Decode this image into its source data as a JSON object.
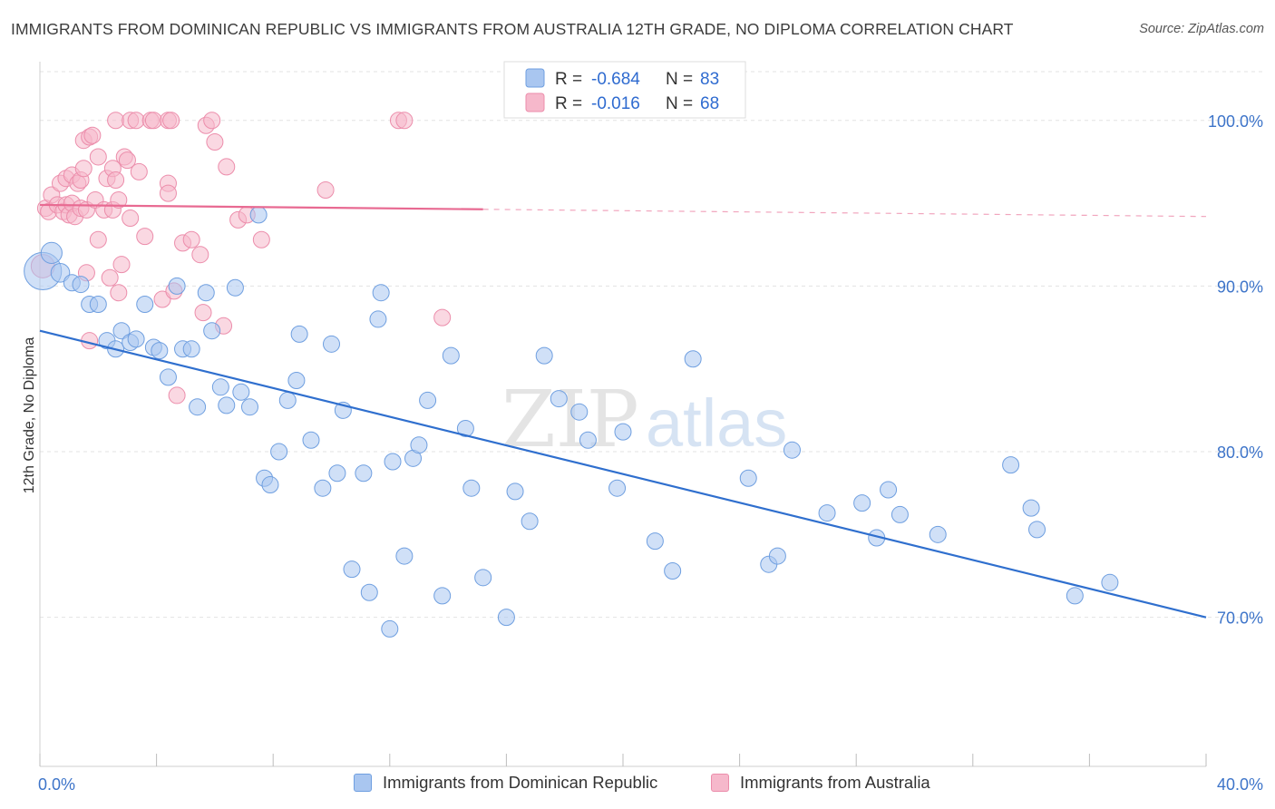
{
  "title": "IMMIGRANTS FROM DOMINICAN REPUBLIC VS IMMIGRANTS FROM AUSTRALIA 12TH GRADE, NO DIPLOMA CORRELATION CHART",
  "source": "Source: ZipAtlas.com",
  "watermark": {
    "zip": "ZIP",
    "atlas": "atlas"
  },
  "colors": {
    "blue_fill": "#a9c6f0",
    "blue_stroke": "#6f9fe0",
    "blue_line": "#2f6fce",
    "pink_fill": "#f6b8cb",
    "pink_stroke": "#ec8dab",
    "pink_line": "#e86a92",
    "grid": "#e3e3e3",
    "tick_text": "#3d74c9"
  },
  "legend": {
    "rows": [
      {
        "r_label": "R = ",
        "r_value": "-0.684",
        "n_label": "N = ",
        "n_value": "83"
      },
      {
        "r_label": "R = ",
        "r_value": "-0.016",
        "n_label": "N = ",
        "n_value": "68"
      }
    ]
  },
  "bottom_legend": [
    "Immigrants from Dominican Republic",
    "Immigrants from Australia"
  ],
  "chart_data": {
    "type": "scatter",
    "title": "IMMIGRANTS FROM DOMINICAN REPUBLIC VS IMMIGRANTS FROM AUSTRALIA 12TH GRADE, NO DIPLOMA CORRELATION CHART",
    "xlabel": "",
    "ylabel": "12th Grade, No Diploma",
    "xlim": [
      0,
      40
    ],
    "ylim": [
      61,
      103
    ],
    "x_tick_labels": [
      {
        "value": 0,
        "label": "0.0%"
      },
      {
        "value": 40,
        "label": "40.0%"
      }
    ],
    "y_tick_labels": [
      {
        "value": 100,
        "label": "100.0%"
      },
      {
        "value": 90,
        "label": "90.0%"
      },
      {
        "value": 80,
        "label": "80.0%"
      },
      {
        "value": 70,
        "label": "70.0%"
      }
    ],
    "grid": "horizontal dashed",
    "legend_placement": "top-center",
    "series": [
      {
        "name": "Immigrants from Dominican Republic",
        "r": -0.684,
        "n": 83,
        "trend": {
          "x": [
            0,
            40
          ],
          "y": [
            87.3,
            70.0
          ],
          "dashed_from": null
        },
        "points": [
          [
            0.1,
            90.9,
            1.6
          ],
          [
            0.4,
            92.0,
            0.9
          ],
          [
            0.7,
            90.8,
            0.8
          ],
          [
            1.1,
            90.2,
            0.7
          ],
          [
            1.4,
            90.1,
            0.7
          ],
          [
            1.7,
            88.9,
            0.7
          ],
          [
            2.0,
            88.9,
            0.7
          ],
          [
            2.3,
            86.7,
            0.7
          ],
          [
            2.6,
            86.2,
            0.7
          ],
          [
            2.8,
            87.3,
            0.7
          ],
          [
            3.1,
            86.6,
            0.7
          ],
          [
            3.3,
            86.8,
            0.7
          ],
          [
            3.6,
            88.9,
            0.7
          ],
          [
            3.9,
            86.3,
            0.7
          ],
          [
            4.1,
            86.1,
            0.7
          ],
          [
            4.4,
            84.5,
            0.7
          ],
          [
            4.7,
            90.0,
            0.7
          ],
          [
            4.9,
            86.2,
            0.7
          ],
          [
            5.2,
            86.2,
            0.7
          ],
          [
            5.4,
            82.7,
            0.7
          ],
          [
            5.7,
            89.6,
            0.7
          ],
          [
            5.9,
            87.3,
            0.7
          ],
          [
            6.2,
            83.9,
            0.7
          ],
          [
            6.4,
            82.8,
            0.7
          ],
          [
            6.7,
            89.9,
            0.7
          ],
          [
            6.9,
            83.6,
            0.7
          ],
          [
            7.2,
            82.7,
            0.7
          ],
          [
            7.5,
            94.3,
            0.7
          ],
          [
            7.7,
            78.4,
            0.7
          ],
          [
            7.9,
            78.0,
            0.7
          ],
          [
            8.2,
            80.0,
            0.7
          ],
          [
            8.5,
            83.1,
            0.7
          ],
          [
            8.8,
            84.3,
            0.7
          ],
          [
            8.9,
            87.1,
            0.7
          ],
          [
            9.3,
            80.7,
            0.7
          ],
          [
            9.7,
            77.8,
            0.7
          ],
          [
            10.0,
            86.5,
            0.7
          ],
          [
            10.2,
            78.7,
            0.7
          ],
          [
            10.4,
            82.5,
            0.7
          ],
          [
            10.7,
            72.9,
            0.7
          ],
          [
            11.1,
            78.7,
            0.7
          ],
          [
            11.3,
            71.5,
            0.7
          ],
          [
            11.6,
            88.0,
            0.7
          ],
          [
            11.7,
            89.6,
            0.7
          ],
          [
            12.0,
            69.3,
            0.7
          ],
          [
            12.1,
            79.4,
            0.7
          ],
          [
            12.5,
            73.7,
            0.7
          ],
          [
            12.8,
            79.6,
            0.7
          ],
          [
            13.0,
            80.4,
            0.7
          ],
          [
            13.3,
            83.1,
            0.7
          ],
          [
            13.8,
            71.3,
            0.7
          ],
          [
            14.1,
            85.8,
            0.7
          ],
          [
            14.6,
            81.4,
            0.7
          ],
          [
            14.8,
            77.8,
            0.7
          ],
          [
            15.2,
            72.4,
            0.7
          ],
          [
            16.0,
            70.0,
            0.7
          ],
          [
            16.3,
            77.6,
            0.7
          ],
          [
            16.8,
            75.8,
            0.7
          ],
          [
            17.3,
            85.8,
            0.7
          ],
          [
            17.8,
            83.2,
            0.7
          ],
          [
            18.5,
            82.4,
            0.7
          ],
          [
            18.8,
            80.7,
            0.7
          ],
          [
            19.8,
            77.8,
            0.7
          ],
          [
            20.0,
            81.2,
            0.7
          ],
          [
            21.1,
            74.6,
            0.7
          ],
          [
            21.7,
            72.8,
            0.7
          ],
          [
            22.4,
            85.6,
            0.7
          ],
          [
            24.3,
            78.4,
            0.7
          ],
          [
            25.0,
            73.2,
            0.7
          ],
          [
            25.3,
            73.7,
            0.7
          ],
          [
            25.8,
            80.1,
            0.7
          ],
          [
            27.0,
            76.3,
            0.7
          ],
          [
            28.2,
            76.9,
            0.7
          ],
          [
            28.7,
            74.8,
            0.7
          ],
          [
            29.1,
            77.7,
            0.7
          ],
          [
            29.5,
            76.2,
            0.7
          ],
          [
            30.8,
            75.0,
            0.7
          ],
          [
            33.3,
            79.2,
            0.7
          ],
          [
            34.0,
            76.6,
            0.7
          ],
          [
            34.2,
            75.3,
            0.7
          ],
          [
            35.5,
            71.3,
            0.7
          ],
          [
            36.7,
            72.1,
            0.7
          ]
        ]
      },
      {
        "name": "Immigrants from Australia",
        "r": -0.016,
        "n": 68,
        "trend": {
          "x": [
            0,
            40
          ],
          "y": [
            94.9,
            94.2
          ],
          "dashed_from": 15.2
        },
        "points": [
          [
            0.1,
            91.2,
            1.0
          ],
          [
            0.2,
            94.7,
            0.7
          ],
          [
            0.3,
            94.5,
            0.7
          ],
          [
            0.4,
            95.5,
            0.7
          ],
          [
            0.6,
            94.9,
            0.7
          ],
          [
            0.7,
            96.2,
            0.7
          ],
          [
            0.8,
            94.5,
            0.7
          ],
          [
            0.9,
            94.9,
            0.7
          ],
          [
            0.9,
            96.5,
            0.7
          ],
          [
            1.0,
            94.3,
            0.7
          ],
          [
            1.1,
            95.0,
            0.7
          ],
          [
            1.1,
            96.7,
            0.7
          ],
          [
            1.2,
            94.2,
            0.7
          ],
          [
            1.3,
            96.2,
            0.7
          ],
          [
            1.4,
            96.4,
            0.7
          ],
          [
            1.4,
            94.7,
            0.7
          ],
          [
            1.5,
            98.8,
            0.7
          ],
          [
            1.5,
            97.1,
            0.7
          ],
          [
            1.6,
            94.6,
            0.7
          ],
          [
            1.6,
            90.8,
            0.7
          ],
          [
            1.7,
            86.7,
            0.7
          ],
          [
            1.7,
            99.0,
            0.7
          ],
          [
            1.8,
            99.1,
            0.7
          ],
          [
            1.9,
            95.2,
            0.7
          ],
          [
            2.0,
            97.8,
            0.7
          ],
          [
            2.0,
            92.8,
            0.7
          ],
          [
            2.2,
            94.6,
            0.7
          ],
          [
            2.3,
            96.5,
            0.7
          ],
          [
            2.4,
            90.5,
            0.7
          ],
          [
            2.5,
            97.1,
            0.7
          ],
          [
            2.5,
            94.6,
            0.7
          ],
          [
            2.6,
            96.4,
            0.7
          ],
          [
            2.6,
            100.0,
            0.7
          ],
          [
            2.7,
            95.2,
            0.7
          ],
          [
            2.7,
            89.6,
            0.7
          ],
          [
            2.8,
            91.3,
            0.7
          ],
          [
            2.9,
            97.8,
            0.7
          ],
          [
            3.0,
            97.6,
            0.7
          ],
          [
            3.1,
            94.1,
            0.7
          ],
          [
            3.1,
            100.0,
            0.7
          ],
          [
            3.3,
            100.0,
            0.7
          ],
          [
            3.4,
            96.9,
            0.7
          ],
          [
            3.6,
            93.0,
            0.7
          ],
          [
            3.8,
            100.0,
            0.7
          ],
          [
            3.9,
            100.0,
            0.7
          ],
          [
            4.2,
            89.2,
            0.7
          ],
          [
            4.4,
            100.0,
            0.7
          ],
          [
            4.4,
            96.2,
            0.7
          ],
          [
            4.4,
            95.6,
            0.7
          ],
          [
            4.5,
            100.0,
            0.7
          ],
          [
            4.6,
            89.7,
            0.7
          ],
          [
            4.7,
            83.4,
            0.7
          ],
          [
            4.9,
            92.6,
            0.7
          ],
          [
            5.2,
            92.8,
            0.7
          ],
          [
            5.5,
            91.9,
            0.7
          ],
          [
            5.6,
            88.4,
            0.7
          ],
          [
            5.7,
            99.7,
            0.7
          ],
          [
            5.9,
            100.0,
            0.7
          ],
          [
            6.0,
            98.7,
            0.7
          ],
          [
            6.3,
            87.6,
            0.7
          ],
          [
            6.4,
            97.2,
            0.7
          ],
          [
            6.8,
            94.0,
            0.7
          ],
          [
            7.1,
            94.3,
            0.7
          ],
          [
            7.6,
            92.8,
            0.7
          ],
          [
            9.8,
            95.8,
            0.7
          ],
          [
            12.3,
            100.0,
            0.7
          ],
          [
            12.5,
            100.0,
            0.7
          ],
          [
            13.8,
            88.1,
            0.7
          ]
        ]
      }
    ]
  }
}
